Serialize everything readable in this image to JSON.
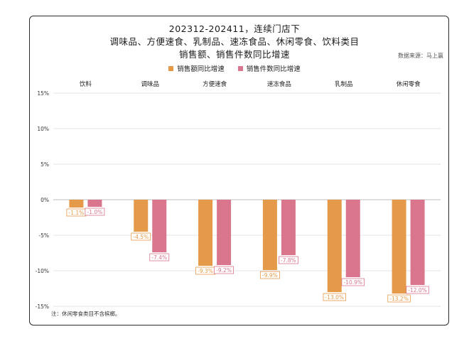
{
  "header": {
    "title_line1": "202312-202411，连续门店下",
    "title_line2": "调味品、方便速食、乳制品、速冻食品、休闲零食、饮料类目",
    "title_line3": "销售额、销售件数同比增速",
    "source": "数据来源：马上赢"
  },
  "footnote": "注：休闲零食类目不含槟榔。",
  "chart_data": {
    "type": "bar",
    "title": "202312-202411，连续门店下 调味品、方便速食、乳制品、速冻食品、休闲零食、饮料类目 销售额、销售件数同比增速",
    "categories": [
      "饮料",
      "调味品",
      "方便速食",
      "速冻食品",
      "乳制品",
      "休闲零食"
    ],
    "series": [
      {
        "name": "销售额同比增速",
        "color": "#E59A4A",
        "values": [
          -1.1,
          -4.5,
          -9.3,
          -9.9,
          -13.0,
          -13.2
        ],
        "labels": [
          "-1.1%",
          "-4.5%",
          "-9.3%",
          "-9.9%",
          "-13.0%",
          "-13.2%"
        ]
      },
      {
        "name": "销售件数同比增速",
        "color": "#D9758C",
        "values": [
          -1.0,
          -7.4,
          -9.2,
          -7.8,
          -10.9,
          -12.0
        ],
        "labels": [
          "-1.0%",
          "-7.4%",
          "-9.2%",
          "-7.8%",
          "-10.9%",
          "-12.0%"
        ]
      }
    ],
    "ylim": [
      -15,
      15
    ],
    "yticks": [
      15,
      10,
      5,
      0,
      -5,
      -10,
      -15
    ],
    "ytick_labels": [
      "15%",
      "10%",
      "5%",
      "0%",
      "-5%",
      "-10%",
      "-15%"
    ],
    "grid": true,
    "legend_position": "top-center",
    "category_labels_position": "top"
  }
}
